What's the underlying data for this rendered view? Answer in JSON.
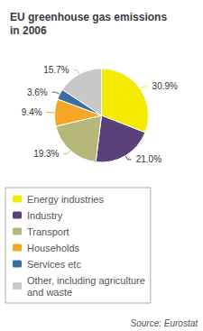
{
  "chart_data": {
    "type": "pie",
    "title": "EU greenhouse gas emissions\nin 2006",
    "categories": [
      "Energy industries",
      "Industry",
      "Transport",
      "Households",
      "Services etc",
      "Other, including agriculture\nand waste"
    ],
    "values": [
      30.9,
      21.0,
      19.3,
      9.4,
      3.6,
      15.7
    ],
    "value_labels": [
      "30.9%",
      "21.0%",
      "19.3%",
      "9.4%",
      "3.6%",
      "15.7%"
    ],
    "colors": [
      "#f5eb00",
      "#5b4179",
      "#b5b87a",
      "#f5a623",
      "#3a6ea5",
      "#c8c8c8"
    ],
    "data_labels": true,
    "legend": "lower left",
    "annotations": [
      "Source: Eurostat"
    ]
  }
}
